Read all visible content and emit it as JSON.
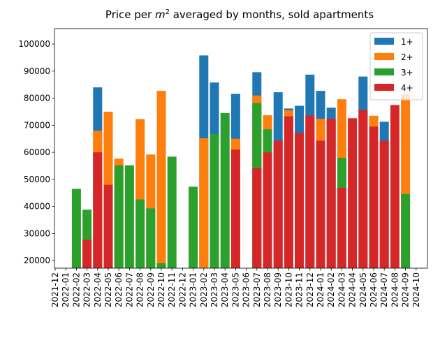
{
  "chart_data": {
    "type": "bar",
    "title_parts": [
      "Price per ",
      "m",
      "2",
      " averaged by months, sold apartments"
    ],
    "categories": [
      "2021-12",
      "2022-01",
      "2022-02",
      "2022-03",
      "2022-04",
      "2022-05",
      "2022-06",
      "2022-07",
      "2022-08",
      "2022-09",
      "2022-10",
      "2022-11",
      "2022-12",
      "2023-01",
      "2023-02",
      "2023-03",
      "2023-04",
      "2023-05",
      "2023-06",
      "2023-07",
      "2023-08",
      "2023-09",
      "2023-10",
      "2023-11",
      "2023-12",
      "2024-01",
      "2024-02",
      "2024-03",
      "2024-04",
      "2024-05",
      "2024-06",
      "2024-07",
      "2024-08",
      "2024-09",
      "2024-10"
    ],
    "series": [
      {
        "name": "1+",
        "color": "#1f77b4",
        "values": [
          null,
          null,
          null,
          null,
          84000,
          null,
          null,
          null,
          null,
          null,
          null,
          null,
          null,
          null,
          95800,
          85800,
          null,
          81600,
          null,
          89600,
          null,
          82200,
          76200,
          77200,
          88700,
          82700,
          76500,
          null,
          null,
          88000,
          null,
          71300,
          null,
          null,
          null
        ]
      },
      {
        "name": "2+",
        "color": "#ff7f0e",
        "values": [
          null,
          null,
          null,
          null,
          68000,
          75000,
          57700,
          null,
          72300,
          59200,
          82700,
          null,
          null,
          null,
          65200,
          null,
          null,
          65000,
          null,
          81000,
          73700,
          null,
          75600,
          null,
          null,
          72400,
          null,
          79600,
          null,
          null,
          73500,
          null,
          null,
          81500,
          null
        ]
      },
      {
        "name": "3+",
        "color": "#2ca02c",
        "values": [
          null,
          null,
          46500,
          38800,
          null,
          null,
          55200,
          55200,
          42600,
          39300,
          19000,
          58400,
          null,
          47300,
          null,
          66700,
          74500,
          null,
          null,
          78200,
          68500,
          null,
          null,
          null,
          null,
          null,
          null,
          58000,
          null,
          null,
          null,
          null,
          null,
          44600,
          null
        ]
      },
      {
        "name": "4+",
        "color": "#d62728",
        "values": [
          null,
          null,
          null,
          27700,
          60000,
          48000,
          null,
          null,
          null,
          null,
          null,
          null,
          null,
          null,
          null,
          null,
          null,
          61000,
          null,
          54200,
          60000,
          64300,
          73300,
          67200,
          73600,
          64300,
          72400,
          46900,
          72600,
          75700,
          69500,
          64300,
          77500,
          null,
          null
        ]
      }
    ],
    "ylim": [
      17200,
      105700
    ],
    "yticks": [
      20000,
      30000,
      40000,
      50000,
      60000,
      70000,
      80000,
      90000,
      100000
    ],
    "legend": "upper right"
  }
}
